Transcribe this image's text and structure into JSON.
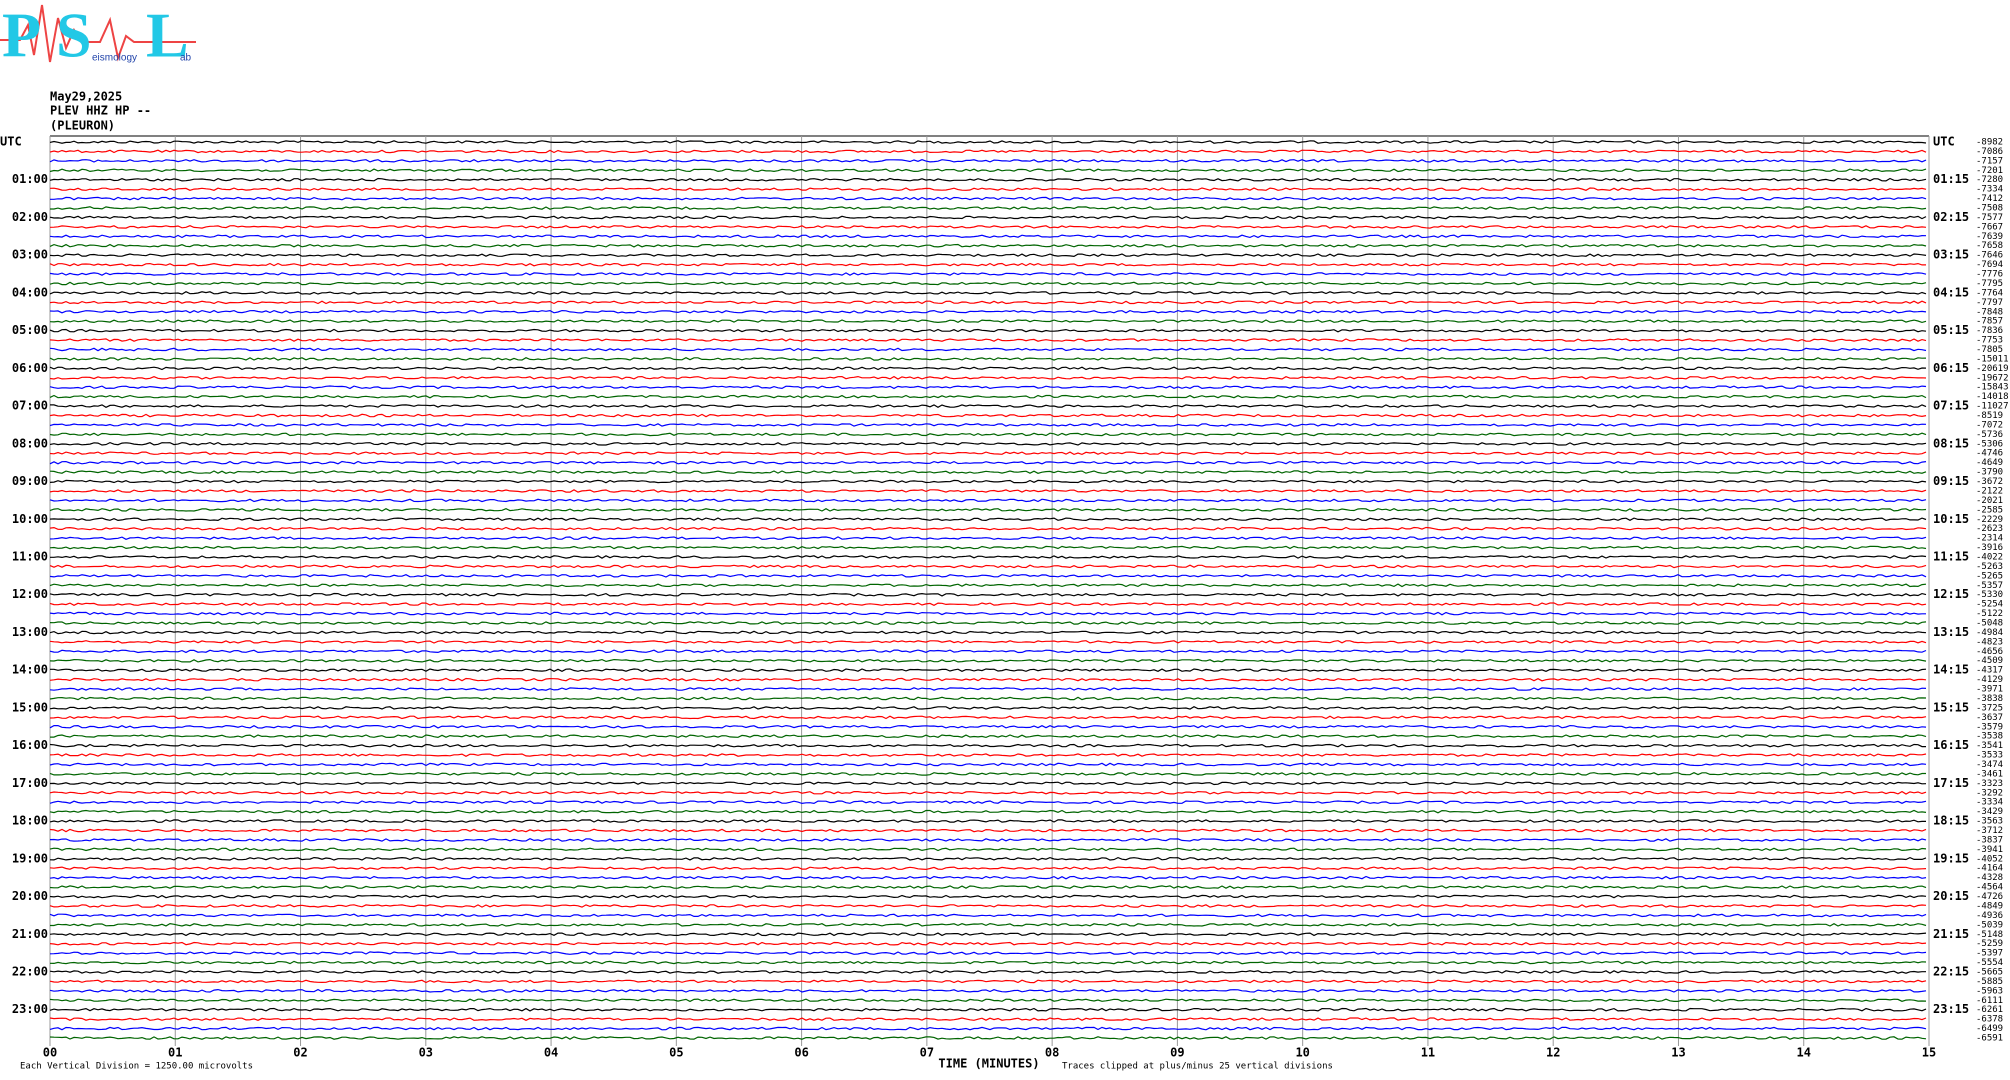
{
  "logo": {
    "letters": [
      "P",
      "S",
      "L"
    ],
    "subtitle": "eismology",
    "suffix": "ab"
  },
  "chart_data": {
    "type": "helicorder",
    "date": "May29,2025",
    "station": "PLEV HHZ HP --",
    "location": "(PLEURON)",
    "left_labels": [
      "UTC",
      "01:00",
      "02:00",
      "03:00",
      "04:00",
      "05:00",
      "06:00",
      "07:00",
      "08:00",
      "09:00",
      "10:00",
      "11:00",
      "12:00",
      "13:00",
      "14:00",
      "15:00",
      "16:00",
      "17:00",
      "18:00",
      "19:00",
      "20:00",
      "21:00",
      "22:00",
      "23:00"
    ],
    "right_labels": [
      "UTC",
      "01:15",
      "02:15",
      "03:15",
      "04:15",
      "05:15",
      "06:15",
      "07:15",
      "08:15",
      "09:15",
      "10:15",
      "11:15",
      "12:15",
      "13:15",
      "14:15",
      "15:15",
      "16:15",
      "17:15",
      "18:15",
      "19:15",
      "20:15",
      "21:15",
      "22:15",
      "23:15"
    ],
    "trace_colors": [
      "#000000",
      "#ff0000",
      "#0000ff",
      "#006400"
    ],
    "trace_offsets": [
      -8982,
      -7086,
      -7157,
      -7201,
      -7280,
      -7334,
      -7412,
      -7508,
      -7577,
      -7667,
      -7639,
      -7658,
      -7646,
      -7694,
      -7776,
      -7795,
      -7764,
      -7797,
      -7848,
      -7857,
      -7836,
      -7753,
      -7805,
      -15011,
      -20619,
      -19672,
      -15843,
      -14018,
      -11027,
      -8519,
      -7072,
      -5736,
      -5306,
      -4746,
      -4649,
      -3790,
      -3672,
      -2122,
      -2021,
      -2585,
      -2229,
      -2623,
      -2314,
      -3916,
      -4022,
      -5263,
      -5265,
      -5357,
      -5330,
      -5254,
      -5122,
      -5048,
      -4984,
      -4823,
      -4656,
      -4509,
      -4317,
      -4129,
      -3971,
      -3838,
      -3725,
      -3637,
      -3579,
      -3538,
      -3541,
      -3533,
      -3474,
      -3461,
      -3323,
      -3292,
      -3334,
      -3429,
      -3563,
      -3712,
      -3837,
      -3941,
      -4052,
      -4164,
      -4328,
      -4564,
      -4726,
      -4849,
      -4936,
      -5039,
      -5148,
      -5259,
      -5397,
      -5554,
      -5665,
      -5885,
      -5963,
      -6111,
      -6261,
      -6378,
      -6499,
      -6591
    ],
    "xlabel": "TIME (MINUTES)",
    "xlim": [
      0,
      15
    ],
    "xticks": [
      {
        "value": 0,
        "label": "00"
      },
      {
        "value": 1,
        "label": "01"
      },
      {
        "value": 2,
        "label": "02"
      },
      {
        "value": 3,
        "label": "03"
      },
      {
        "value": 4,
        "label": "04"
      },
      {
        "value": 5,
        "label": "05"
      },
      {
        "value": 6,
        "label": "06"
      },
      {
        "value": 7,
        "label": "07"
      },
      {
        "value": 8,
        "label": "08"
      },
      {
        "value": 9,
        "label": "09"
      },
      10,
      11,
      12,
      13,
      14,
      15
    ],
    "scale_note": "Each Vertical Division = 1250.00 microvolts",
    "clip_note": "Traces clipped at plus/minus 25 vertical divisions"
  }
}
